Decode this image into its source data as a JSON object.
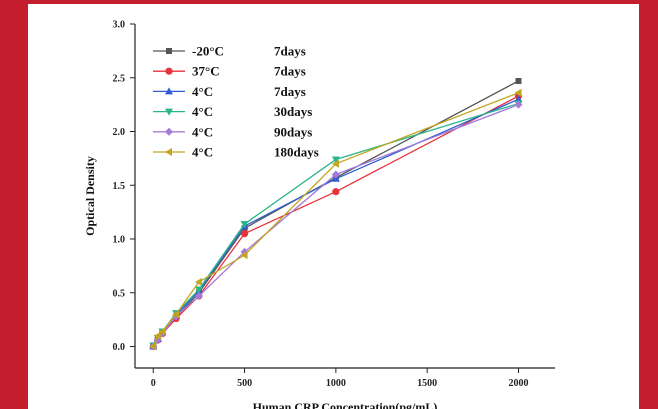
{
  "background_color": "#c41e2e",
  "chart_data": {
    "type": "line",
    "title": "",
    "xlabel": "Human CRP Concentration(pg/mL)",
    "ylabel": "Optical Density",
    "xlim": [
      -100,
      2200
    ],
    "ylim": [
      -0.2,
      3.0
    ],
    "x_ticks": [
      0,
      500,
      1000,
      1500,
      2000
    ],
    "y_ticks": [
      0.0,
      0.5,
      1.0,
      1.5,
      2.0,
      2.5,
      3.0
    ],
    "x_tick_labels": [
      "0",
      "500",
      "1000",
      "1500",
      "2000"
    ],
    "y_tick_labels": [
      "0.0",
      "0.5",
      "1.0",
      "1.5",
      "2.0",
      "2.5",
      "3.0"
    ],
    "grid": false,
    "legend_position": "top-left",
    "x": [
      0,
      25,
      50,
      125,
      250,
      500,
      1000,
      2000
    ],
    "series": [
      {
        "temp": "-20°C",
        "days": "7days",
        "color": "#555555",
        "marker": "square",
        "values": [
          0.0,
          0.07,
          0.13,
          0.27,
          0.5,
          1.1,
          1.57,
          2.47
        ]
      },
      {
        "temp": "37°C",
        "days": "7days",
        "color": "#e8323c",
        "marker": "circle",
        "values": [
          0.0,
          0.06,
          0.12,
          0.26,
          0.47,
          1.05,
          1.44,
          2.33
        ]
      },
      {
        "temp": "4°C",
        "days": "7days",
        "color": "#2e5fd6",
        "marker": "triangle-up",
        "values": [
          0.0,
          0.07,
          0.13,
          0.29,
          0.52,
          1.12,
          1.56,
          2.3
        ]
      },
      {
        "temp": "4°C",
        "days": "30days",
        "color": "#2bb58a",
        "marker": "triangle-down",
        "values": [
          0.01,
          0.08,
          0.14,
          0.31,
          0.53,
          1.14,
          1.74,
          2.26
        ]
      },
      {
        "temp": "4°C",
        "days": "90days",
        "color": "#a47ad8",
        "marker": "diamond",
        "values": [
          0.0,
          0.06,
          0.12,
          0.28,
          0.47,
          0.88,
          1.6,
          2.25
        ]
      },
      {
        "temp": "4°C",
        "days": "180days",
        "color": "#c2a51e",
        "marker": "triangle-left",
        "values": [
          0.0,
          0.1,
          0.14,
          0.3,
          0.6,
          0.85,
          1.7,
          2.36
        ]
      }
    ]
  }
}
